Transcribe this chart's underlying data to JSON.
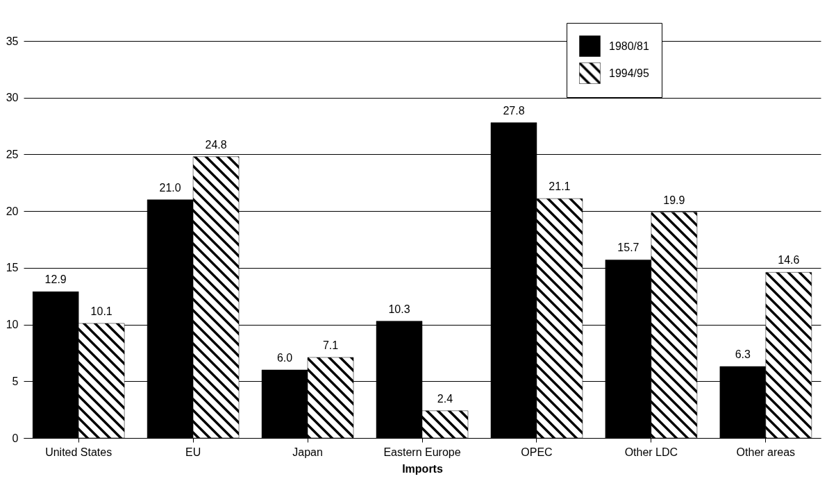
{
  "chart_data": {
    "type": "bar",
    "xlabel": "Imports",
    "categories": [
      "United States",
      "EU",
      "Japan",
      "Eastern Europe",
      "OPEC",
      "Other LDC",
      "Other areas"
    ],
    "series": [
      {
        "name": "1980/81",
        "color": "#000000",
        "values": [
          12.9,
          21.0,
          6.0,
          10.3,
          27.8,
          15.7,
          6.3
        ],
        "value_labels": [
          "12.9",
          "21.0",
          "6.0",
          "10.3",
          "27.8",
          "15.7",
          "6.3"
        ]
      },
      {
        "name": "1994/95",
        "color": "#000000",
        "values": [
          10.1,
          24.8,
          7.1,
          2.4,
          21.1,
          19.9,
          14.6
        ],
        "value_labels": [
          "10.1",
          "24.8",
          "7.1",
          "2.4",
          "21.1",
          "19.9",
          "14.6"
        ]
      }
    ],
    "ylim": [
      0,
      35
    ],
    "yticks": [
      0,
      5,
      10,
      15,
      20,
      25,
      30,
      35
    ],
    "grid": "y",
    "legend": "top right"
  }
}
